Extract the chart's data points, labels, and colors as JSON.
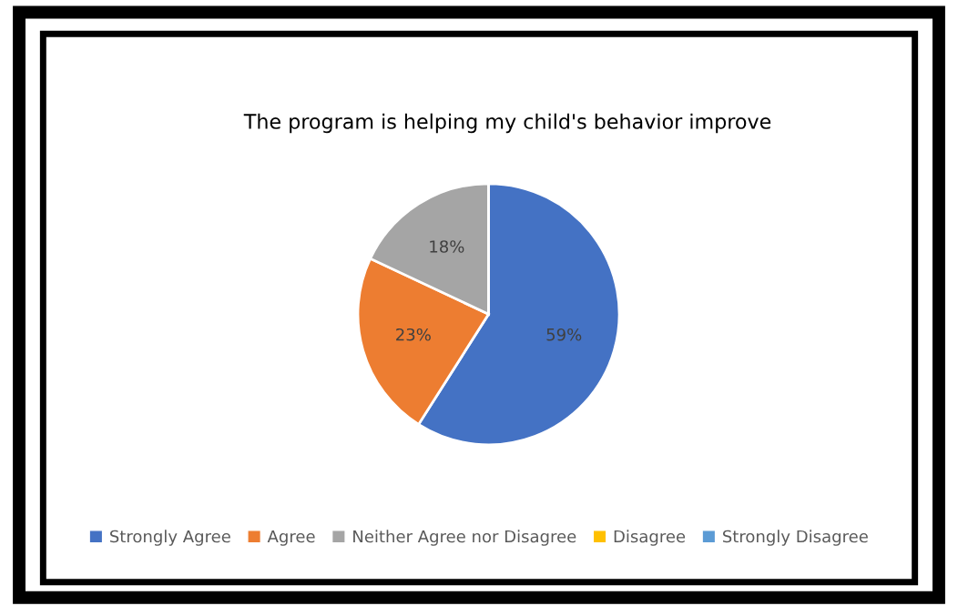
{
  "chart_data": {
    "type": "pie",
    "title": "The program is helping my child's behavior improve",
    "categories": [
      "Strongly Agree",
      "Agree",
      "Neither Agree nor Disagree",
      "Disagree",
      "Strongly Disagree"
    ],
    "values": [
      59,
      23,
      18,
      0,
      0
    ],
    "colors": [
      "#4472c4",
      "#ed7d31",
      "#a5a5a5",
      "#ffc000",
      "#5b9bd5"
    ],
    "value_labels": [
      "59%",
      "23%",
      "18%",
      null,
      null
    ],
    "legend": "bottom"
  }
}
